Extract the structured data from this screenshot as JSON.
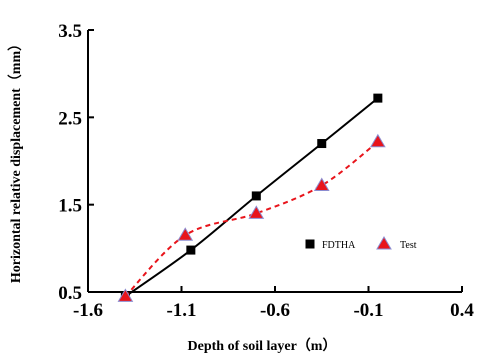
{
  "chart_data": {
    "type": "line",
    "title": "",
    "xlabel": "Depth of soil layer（m）",
    "ylabel": "Horizontal relative displacement（mm）",
    "xlim": [
      -1.6,
      0.4
    ],
    "ylim": [
      0.5,
      3.5
    ],
    "x_ticks": [
      -1.6,
      -1.1,
      -0.6,
      -0.1,
      0.4
    ],
    "x_tick_labels": [
      "-1.6",
      "-1.1",
      "-0.6",
      "-0.1",
      "0.4"
    ],
    "y_ticks": [
      0.5,
      1.5,
      2.5,
      3.5
    ],
    "y_tick_labels": [
      "0.5",
      "1.5",
      "2.5",
      "3.5"
    ],
    "grid": false,
    "legend_position": "bottom-right",
    "series": [
      {
        "name": "FDTHA",
        "color": "#000000",
        "line_style": "solid",
        "marker": "square",
        "x": [
          -1.4,
          -1.05,
          -0.7,
          -0.35,
          -0.05
        ],
        "y": [
          0.45,
          0.98,
          1.6,
          2.2,
          2.72
        ]
      },
      {
        "name": "Test",
        "color": "#e8141b",
        "line_style": "dashed",
        "marker": "triangle",
        "x": [
          -1.4,
          -1.08,
          -0.7,
          -0.35,
          -0.05
        ],
        "y": [
          0.45,
          1.15,
          1.4,
          1.72,
          2.22
        ]
      }
    ]
  }
}
